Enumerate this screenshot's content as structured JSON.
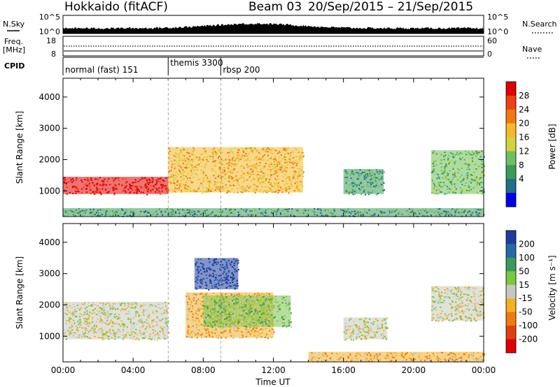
{
  "header": {
    "title": "Hokkaido (fitACF)",
    "beam": "Beam 03",
    "date_range": "20/Sep/2015 – 21/Sep/2015"
  },
  "aux_panels": {
    "nsky_label": "N.Sky",
    "nsky_ticks": [
      "10^5",
      "10^0"
    ],
    "nsearch_label": "N.Search",
    "nsearch_ticks": [
      "10^5",
      "10^0"
    ],
    "freq_label": "Freq.",
    "freq_unit": "[MHz]",
    "freq_ticks": [
      "18",
      "8"
    ],
    "nave_label": "Nave",
    "nave_ticks": [
      "60",
      "0"
    ],
    "cpid_label": "CPID",
    "cpid_modes": [
      {
        "name": "normal (fast) 151",
        "start_hour": 0
      },
      {
        "name": "themis 3300",
        "start_hour": 6
      },
      {
        "name": "rbsp 200",
        "start_hour": 9
      }
    ]
  },
  "xaxis": {
    "label": "Time UT",
    "ticks": [
      "00:00",
      "04:00",
      "08:00",
      "12:00",
      "16:00",
      "20:00",
      "00:00"
    ]
  },
  "power_colorbar": {
    "label": "Power [dB]",
    "ticks": [
      "28",
      "24",
      "20",
      "16",
      "12",
      "8",
      "4"
    ],
    "colors": [
      "#e00000",
      "#f04010",
      "#f07a10",
      "#f5b82a",
      "#d2d23c",
      "#6cc060",
      "#3a9a58",
      "#1e6e8c",
      "#0000e6"
    ]
  },
  "velocity_colorbar": {
    "label": "Velocity [m s⁻¹]",
    "ticks": [
      "200",
      "100",
      "50",
      "15",
      "-15",
      "-50",
      "-100",
      "-200"
    ],
    "colors": [
      "#1e3c9c",
      "#2a68a8",
      "#3a9a58",
      "#78c840",
      "#c8c8c0",
      "#f5b020",
      "#ee7a10",
      "#e04010",
      "#e00000"
    ]
  },
  "chart_data": [
    {
      "type": "heatmap",
      "title": "",
      "xlabel": "",
      "ylabel": "Slant Range [km]",
      "xlim": [
        0,
        24
      ],
      "ylim": [
        180,
        4600
      ],
      "yticks": [
        1000,
        2000,
        3000,
        4000
      ],
      "colorbar": "Power [dB]",
      "cmap_range": [
        0,
        30
      ],
      "echo_regions": [
        {
          "t_start": 0,
          "t_end": 6,
          "r_low": 900,
          "r_high": 1450,
          "value": 27
        },
        {
          "t_start": 6,
          "t_end": 13.7,
          "r_low": 950,
          "r_high": 2400,
          "value": 20
        },
        {
          "t_start": 16,
          "t_end": 18.3,
          "r_low": 900,
          "r_high": 1700,
          "value": 10
        },
        {
          "t_start": 21,
          "t_end": 24,
          "r_low": 900,
          "r_high": 2300,
          "value": 12
        },
        {
          "t_start": 0,
          "t_end": 24,
          "r_low": 200,
          "r_high": 450,
          "value": 8
        }
      ]
    },
    {
      "type": "heatmap",
      "title": "",
      "xlabel": "Time UT",
      "ylabel": "Slant Range [km]",
      "xlim": [
        0,
        24
      ],
      "ylim": [
        180,
        4600
      ],
      "yticks": [
        1000,
        2000,
        3000,
        4000
      ],
      "colorbar": "Velocity [m s⁻¹]",
      "cmap_range": [
        -200,
        200
      ],
      "echo_regions": [
        {
          "t_start": 0,
          "t_end": 6,
          "r_low": 900,
          "r_high": 2100,
          "value": 0
        },
        {
          "t_start": 7,
          "t_end": 12,
          "r_low": 950,
          "r_high": 2400,
          "value": -50
        },
        {
          "t_start": 8,
          "t_end": 13,
          "r_low": 1300,
          "r_high": 2300,
          "value": 50
        },
        {
          "t_start": 7.5,
          "t_end": 10,
          "r_low": 2500,
          "r_high": 3500,
          "value": 200
        },
        {
          "t_start": 16,
          "t_end": 18.5,
          "r_low": 900,
          "r_high": 1600,
          "value": 0
        },
        {
          "t_start": 21,
          "t_end": 24,
          "r_low": 1500,
          "r_high": 2600,
          "value": 0
        },
        {
          "t_start": 14,
          "t_end": 24,
          "r_low": 200,
          "r_high": 500,
          "value": -50
        }
      ]
    }
  ]
}
